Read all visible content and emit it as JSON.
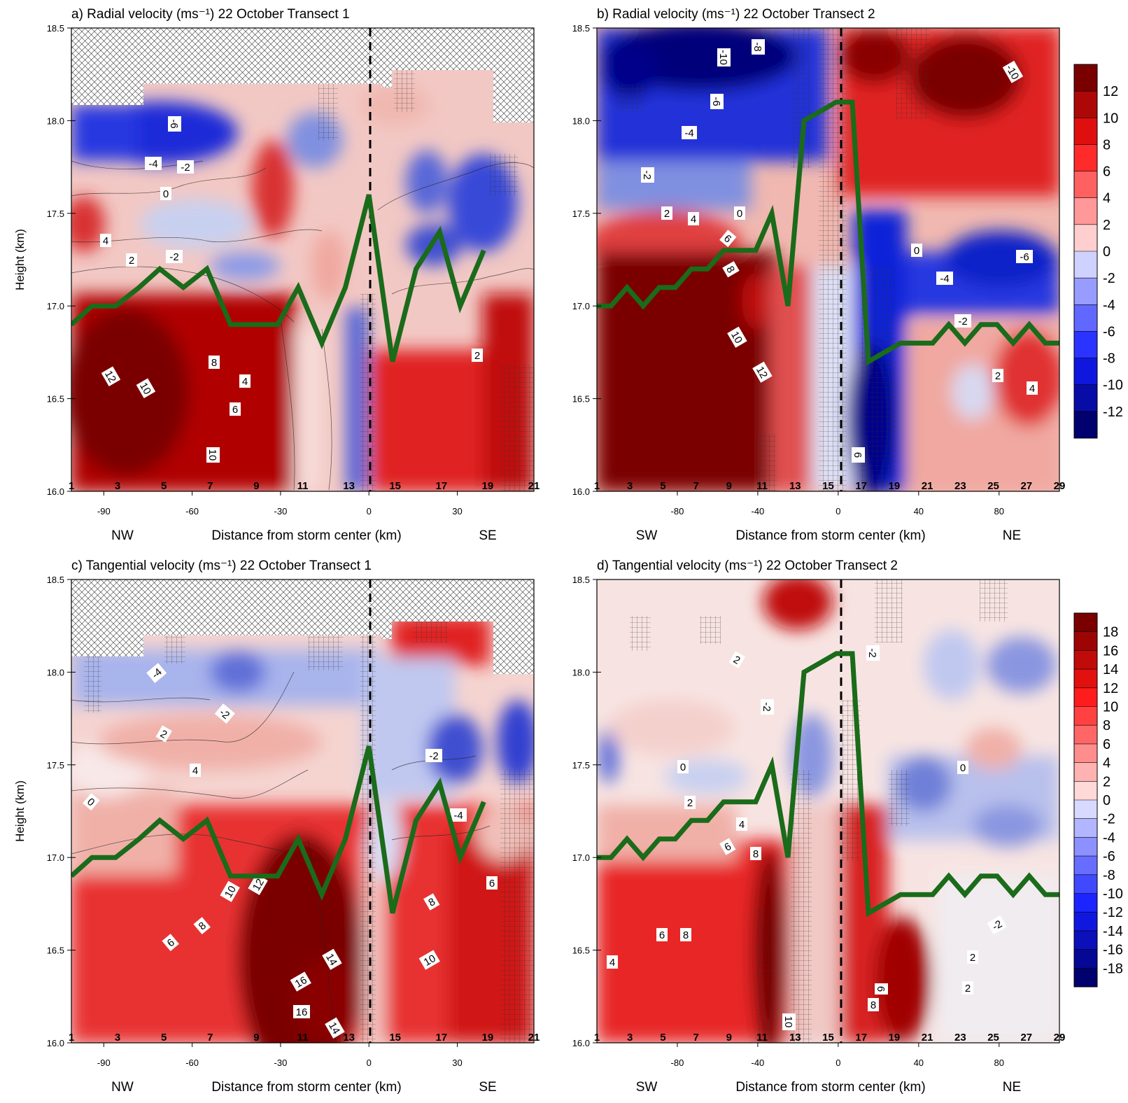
{
  "figure": {
    "y_axis_label": "Height (km)",
    "x_axis_label": "Distance from storm center (km)"
  },
  "chart_data": [
    {
      "type": "heatmap",
      "panel": "a",
      "title": "a) Radial velocity (ms⁻¹) 22 October Transect 1",
      "xlabel": "Distance from storm center (km)",
      "ylabel": "Height (km)",
      "xlim": [
        -101,
        56
      ],
      "ylim": [
        16.0,
        18.5
      ],
      "x_ticks": [
        -90,
        -60,
        -30,
        0,
        30
      ],
      "y_ticks": [
        "16.0",
        "16.5",
        "17.0",
        "17.5",
        "18.0",
        "18.5"
      ],
      "direction_left": "NW",
      "direction_right": "SE",
      "dropsonde_labels": [
        "1",
        "3",
        "5",
        "7",
        "9",
        "11",
        "13",
        "15",
        "17",
        "19",
        "21"
      ],
      "tropopause_line": {
        "x": [
          -101,
          -94,
          -86,
          -78,
          -71,
          -63,
          -55,
          -47,
          -39,
          -31,
          -24,
          -16,
          -8,
          0,
          8,
          16,
          24,
          31,
          39
        ],
        "height": [
          16.9,
          17.0,
          17.0,
          17.1,
          17.2,
          17.1,
          17.2,
          16.9,
          16.9,
          16.9,
          17.1,
          16.8,
          17.1,
          17.6,
          16.7,
          17.2,
          17.4,
          17.0,
          17.3
        ]
      },
      "contour_labels": [
        "12",
        "10",
        "10",
        "8",
        "6",
        "4",
        "-6",
        "-4",
        "-2",
        "0",
        "2",
        "-2",
        "4",
        "2"
      ],
      "colorbar_levels": [
        "12",
        "10",
        "8",
        "6",
        "4",
        "2",
        "0",
        "-2",
        "-4",
        "-6",
        "-8",
        "-10",
        "-12"
      ]
    },
    {
      "type": "heatmap",
      "panel": "b",
      "title": "b) Radial velocity (ms⁻¹) 22 October Transect 2",
      "xlabel": "Distance from storm center (km)",
      "ylabel": "Height (km)",
      "xlim": [
        -120,
        110
      ],
      "ylim": [
        16.0,
        18.5
      ],
      "x_ticks": [
        -80,
        -40,
        0,
        40,
        80
      ],
      "y_ticks": [
        "16.0",
        "16.5",
        "17.0",
        "17.5",
        "18.0",
        "18.5"
      ],
      "direction_left": "SW",
      "direction_right": "NE",
      "dropsonde_labels": [
        "1",
        "3",
        "5",
        "7",
        "9",
        "11",
        "13",
        "15",
        "17",
        "19",
        "21",
        "23",
        "25",
        "27",
        "29"
      ],
      "tropopause_line": {
        "x": [
          -120,
          -113,
          -105,
          -97,
          -89,
          -81,
          -73,
          -65,
          -57,
          -49,
          -41,
          -33,
          -25,
          -17,
          -9,
          -1,
          7,
          15,
          23,
          31,
          39,
          47,
          55,
          63,
          71,
          79,
          87,
          95,
          103,
          110
        ],
        "height": [
          17.0,
          17.0,
          17.1,
          17.0,
          17.1,
          17.1,
          17.2,
          17.2,
          17.3,
          17.3,
          17.3,
          17.5,
          17.0,
          18.0,
          18.05,
          18.1,
          18.1,
          16.7,
          16.75,
          16.8,
          16.8,
          16.8,
          16.9,
          16.8,
          16.9,
          16.9,
          16.8,
          16.9,
          16.8,
          16.8
        ]
      },
      "contour_labels": [
        "-10",
        "-8",
        "-6",
        "-4",
        "-2",
        "0",
        "2",
        "4",
        "6",
        "8",
        "10",
        "12",
        "-10",
        "-6",
        "-4",
        "-2",
        "0",
        "2",
        "4",
        "6"
      ],
      "colorbar_levels": [
        "12",
        "10",
        "8",
        "6",
        "4",
        "2",
        "0",
        "-2",
        "-4",
        "-6",
        "-8",
        "-10",
        "-12"
      ]
    },
    {
      "type": "heatmap",
      "panel": "c",
      "title": "c) Tangential velocity (ms⁻¹) 22 October Transect 1",
      "xlabel": "Distance from storm center (km)",
      "ylabel": "Height (km)",
      "xlim": [
        -101,
        56
      ],
      "ylim": [
        16.0,
        18.5
      ],
      "x_ticks": [
        -90,
        -60,
        -30,
        0,
        30
      ],
      "y_ticks": [
        "16.0",
        "16.5",
        "17.0",
        "17.5",
        "18.0",
        "18.5"
      ],
      "direction_left": "NW",
      "direction_right": "SE",
      "dropsonde_labels": [
        "1",
        "3",
        "5",
        "7",
        "9",
        "11",
        "13",
        "15",
        "17",
        "19",
        "21"
      ],
      "tropopause_line": {
        "x": [
          -101,
          -94,
          -86,
          -78,
          -71,
          -63,
          -55,
          -47,
          -39,
          -31,
          -24,
          -16,
          -8,
          0,
          8,
          16,
          24,
          31,
          39
        ],
        "height": [
          16.9,
          17.0,
          17.0,
          17.1,
          17.2,
          17.1,
          17.2,
          16.9,
          16.9,
          16.9,
          17.1,
          16.8,
          17.1,
          17.6,
          16.7,
          17.2,
          17.4,
          17.0,
          17.3
        ]
      },
      "contour_labels": [
        "-4",
        "-2",
        "0",
        "2",
        "4",
        "6",
        "8",
        "10",
        "12",
        "14",
        "16",
        "16",
        "14",
        "10",
        "8",
        "6",
        "-2",
        "-4"
      ],
      "colorbar_levels": [
        "18",
        "16",
        "14",
        "12",
        "10",
        "8",
        "6",
        "4",
        "2",
        "0",
        "-2",
        "-4",
        "-6",
        "-8",
        "-10",
        "-12",
        "-14",
        "-16",
        "-18"
      ]
    },
    {
      "type": "heatmap",
      "panel": "d",
      "title": "d) Tangential velocity (ms⁻¹) 22 October Transect 2",
      "xlabel": "Distance from storm center (km)",
      "ylabel": "Height (km)",
      "xlim": [
        -120,
        110
      ],
      "ylim": [
        16.0,
        18.5
      ],
      "x_ticks": [
        -80,
        -40,
        0,
        40,
        80
      ],
      "y_ticks": [
        "16.0",
        "16.5",
        "17.0",
        "17.5",
        "18.0",
        "18.5"
      ],
      "direction_left": "SW",
      "direction_right": "NE",
      "dropsonde_labels": [
        "1",
        "3",
        "5",
        "7",
        "9",
        "11",
        "13",
        "15",
        "17",
        "19",
        "21",
        "23",
        "25",
        "27",
        "29"
      ],
      "tropopause_line": {
        "x": [
          -120,
          -113,
          -105,
          -97,
          -89,
          -81,
          -73,
          -65,
          -57,
          -49,
          -41,
          -33,
          -25,
          -17,
          -9,
          -1,
          7,
          15,
          23,
          31,
          39,
          47,
          55,
          63,
          71,
          79,
          87,
          95,
          103,
          110
        ],
        "height": [
          17.0,
          17.0,
          17.1,
          17.0,
          17.1,
          17.1,
          17.2,
          17.2,
          17.3,
          17.3,
          17.3,
          17.5,
          17.0,
          18.0,
          18.05,
          18.1,
          18.1,
          16.7,
          16.75,
          16.8,
          16.8,
          16.8,
          16.9,
          16.8,
          16.9,
          16.9,
          16.8,
          16.9,
          16.8,
          16.8
        ]
      },
      "contour_labels": [
        "4",
        "6",
        "8",
        "10",
        "6",
        "8",
        "4",
        "2",
        "0",
        "-2",
        "2",
        "6",
        "8",
        "2",
        "-2",
        "-2",
        "0",
        "2"
      ],
      "colorbar_levels": [
        "18",
        "16",
        "14",
        "12",
        "10",
        "8",
        "6",
        "4",
        "2",
        "0",
        "-2",
        "-4",
        "-6",
        "-8",
        "-10",
        "-12",
        "-14",
        "-16",
        "-18"
      ]
    }
  ],
  "colors": {
    "tropopause": "#1a6b1a",
    "max_red": "#7a0000",
    "max_blue": "#00006e"
  }
}
